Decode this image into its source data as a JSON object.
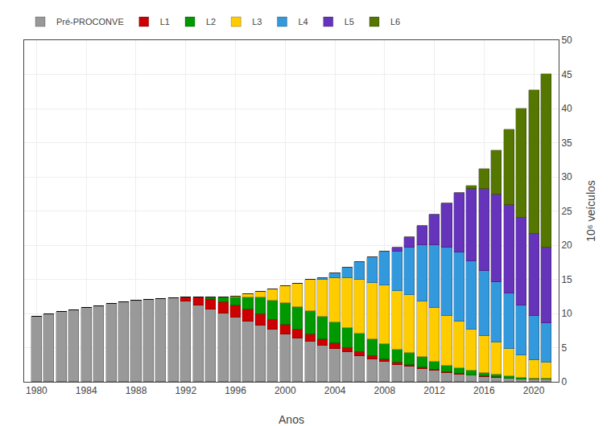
{
  "chart_data": {
    "type": "bar",
    "stacked": true,
    "xlabel": "Anos",
    "ylabel": "10⁶ veículos",
    "x": [
      1980,
      1981,
      1982,
      1983,
      1984,
      1985,
      1986,
      1987,
      1988,
      1989,
      1990,
      1991,
      1992,
      1993,
      1994,
      1995,
      1996,
      1997,
      1998,
      1999,
      2000,
      2001,
      2002,
      2003,
      2004,
      2005,
      2006,
      2007,
      2008,
      2009,
      2010,
      2011,
      2012,
      2013,
      2014,
      2015,
      2016,
      2017,
      2018,
      2019,
      2020,
      2021
    ],
    "series": [
      {
        "name": "Pré-PROCONVE",
        "color": "#999999",
        "values": [
          9.5,
          9.9,
          10.2,
          10.5,
          10.8,
          11.1,
          11.4,
          11.7,
          11.9,
          12.0,
          12.1,
          12.2,
          11.8,
          11.2,
          10.6,
          10.0,
          9.4,
          8.8,
          8.2,
          7.6,
          7.0,
          6.4,
          5.9,
          5.3,
          4.8,
          4.3,
          3.8,
          3.3,
          2.9,
          2.5,
          2.2,
          1.9,
          1.6,
          1.3,
          1.1,
          0.9,
          0.7,
          0.6,
          0.5,
          0.4,
          0.3,
          0.3
        ]
      },
      {
        "name": "L1",
        "color": "#cc0000",
        "values": [
          0,
          0,
          0,
          0,
          0,
          0,
          0,
          0,
          0,
          0,
          0,
          0,
          0.6,
          1.1,
          1.5,
          1.7,
          1.8,
          1.8,
          1.7,
          1.5,
          1.4,
          1.2,
          1.1,
          0.9,
          0.8,
          0.7,
          0.6,
          0.5,
          0.4,
          0.3,
          0.3,
          0.2,
          0.2,
          0.1,
          0.1,
          0.1,
          0.1,
          0.1,
          0.0,
          0.0,
          0.0,
          0.0
        ]
      },
      {
        "name": "L2",
        "color": "#009900",
        "values": [
          0,
          0,
          0,
          0,
          0,
          0,
          0,
          0,
          0,
          0,
          0,
          0,
          0,
          0,
          0.3,
          0.7,
          1.2,
          1.8,
          2.4,
          2.8,
          3.1,
          3.3,
          3.4,
          3.3,
          3.1,
          2.9,
          2.7,
          2.4,
          2.2,
          1.9,
          1.7,
          1.5,
          1.2,
          1.0,
          0.8,
          0.6,
          0.5,
          0.4,
          0.3,
          0.2,
          0.2,
          0.2
        ]
      },
      {
        "name": "L3",
        "color": "#ffcc00",
        "values": [
          0,
          0,
          0,
          0,
          0,
          0,
          0,
          0,
          0,
          0,
          0,
          0,
          0,
          0,
          0,
          0,
          0.1,
          0.4,
          0.9,
          1.6,
          2.5,
          3.5,
          4.5,
          5.5,
          6.5,
          7.3,
          7.9,
          8.3,
          8.6,
          8.6,
          8.5,
          8.2,
          7.8,
          7.3,
          6.8,
          6.1,
          5.4,
          4.7,
          4.0,
          3.3,
          2.7,
          2.3
        ]
      },
      {
        "name": "L4",
        "color": "#3399dd",
        "values": [
          0,
          0,
          0,
          0,
          0,
          0,
          0,
          0,
          0,
          0,
          0,
          0,
          0,
          0,
          0,
          0,
          0,
          0,
          0,
          0,
          0,
          0,
          0,
          0.2,
          0.7,
          1.5,
          2.5,
          3.7,
          5.0,
          5.8,
          7.0,
          8.2,
          9.2,
          9.9,
          10.2,
          10.0,
          9.5,
          8.8,
          8.1,
          7.3,
          6.5,
          5.8
        ]
      },
      {
        "name": "L5",
        "color": "#6633bb",
        "values": [
          0,
          0,
          0,
          0,
          0,
          0,
          0,
          0,
          0,
          0,
          0,
          0,
          0,
          0,
          0,
          0,
          0,
          0,
          0,
          0,
          0,
          0,
          0,
          0,
          0,
          0,
          0,
          0,
          0,
          0.5,
          1.5,
          2.8,
          4.5,
          6.5,
          8.7,
          10.5,
          12.0,
          12.8,
          13.0,
          12.8,
          12.0,
          11.0
        ]
      },
      {
        "name": "L6",
        "color": "#557700",
        "values": [
          0,
          0,
          0,
          0,
          0,
          0,
          0,
          0,
          0,
          0,
          0,
          0,
          0,
          0,
          0,
          0,
          0,
          0,
          0,
          0,
          0,
          0,
          0,
          0,
          0,
          0,
          0,
          0,
          0,
          0,
          0,
          0,
          0,
          0,
          0,
          0.5,
          3.0,
          6.5,
          11.0,
          16.0,
          21.0,
          25.5
        ]
      }
    ],
    "xlim": [
      1979.0,
      2022.0
    ],
    "xticks": [
      1980,
      1984,
      1988,
      1992,
      1996,
      2000,
      2004,
      2008,
      2012,
      2016,
      2020
    ],
    "ylim": [
      0,
      50
    ],
    "yticks": [
      0,
      5,
      10,
      15,
      20,
      25,
      30,
      35,
      40,
      45,
      50
    ],
    "grid": true,
    "legend": "upper left"
  }
}
